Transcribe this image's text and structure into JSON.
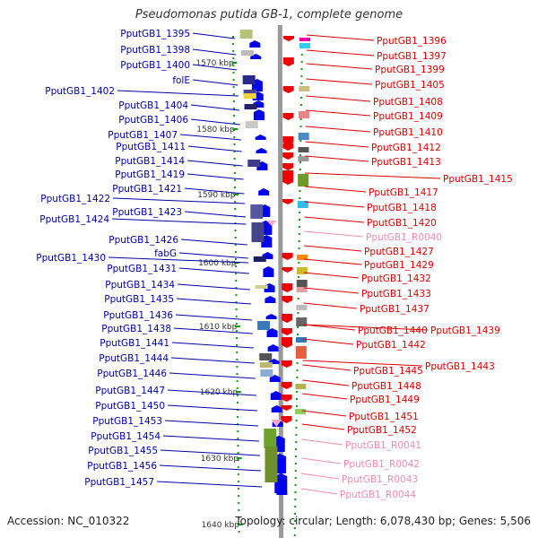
{
  "title": "Pseudomonas putida GB-1, complete genome",
  "footer": {
    "accession": "Accession: NC_010322",
    "summary": "Topology: circular; Length: 6,078,430 bp; Genes: 5,506"
  },
  "colors": {
    "left_label": "#0000aa",
    "right_label": "#dd0000",
    "rna_label": "#f08aaf",
    "backbone": "#999999",
    "left_arrow": "#0000ee",
    "right_arrow": "#ee0000"
  },
  "scale_labels": [
    "1570 kbp",
    "1580 kbp",
    "1590 kbp",
    "1600 kbp",
    "1610 kbp",
    "1620 kbp",
    "1630 kbp",
    "1640 kbp"
  ],
  "left_labels": [
    "PputGB1_1395",
    "PputGB1_1398",
    "PputGB1_1400",
    "folE",
    "PputGB1_1402",
    "PputGB1_1404",
    "PputGB1_1406",
    "PputGB1_1407",
    "PputGB1_1411",
    "PputGB1_1414",
    "PputGB1_1419",
    "PputGB1_1421",
    "PputGB1_1422",
    "PputGB1_1423",
    "PputGB1_1424",
    "PputGB1_1426",
    "fabG",
    "PputGB1_1430",
    "PputGB1_1431",
    "PputGB1_1434",
    "PputGB1_1435",
    "PputGB1_1436",
    "PputGB1_1438",
    "PputGB1_1441",
    "PputGB1_1444",
    "PputGB1_1446",
    "PputGB1_1447",
    "PputGB1_1450",
    "PputGB1_1453",
    "PputGB1_1454",
    "PputGB1_1455",
    "PputGB1_1456",
    "PputGB1_1457"
  ],
  "right_labels": [
    "PputGB1_1396",
    "PputGB1_1397",
    "PputGB1_1399",
    "PputGB1_1405",
    "PputGB1_1408",
    "PputGB1_1409",
    "PputGB1_1410",
    "PputGB1_1412",
    "PputGB1_1413",
    "PputGB1_1415",
    "PputGB1_1417",
    "PputGB1_1418",
    "PputGB1_1420",
    "PputGB1_R0040",
    "PputGB1_1427",
    "PputGB1_1429",
    "PputGB1_1432",
    "PputGB1_1433",
    "PputGB1_1437",
    "PputGB1_1440",
    "PputGB1_1439",
    "PputGB1_1442",
    "PputGB1_1445",
    "PputGB1_1443",
    "PputGB1_1448",
    "PputGB1_1449",
    "PputGB1_1451",
    "PputGB1_1452",
    "PputGB1_R0041",
    "PputGB1_R0042",
    "PputGB1_R0043",
    "PputGB1_R0044"
  ]
}
